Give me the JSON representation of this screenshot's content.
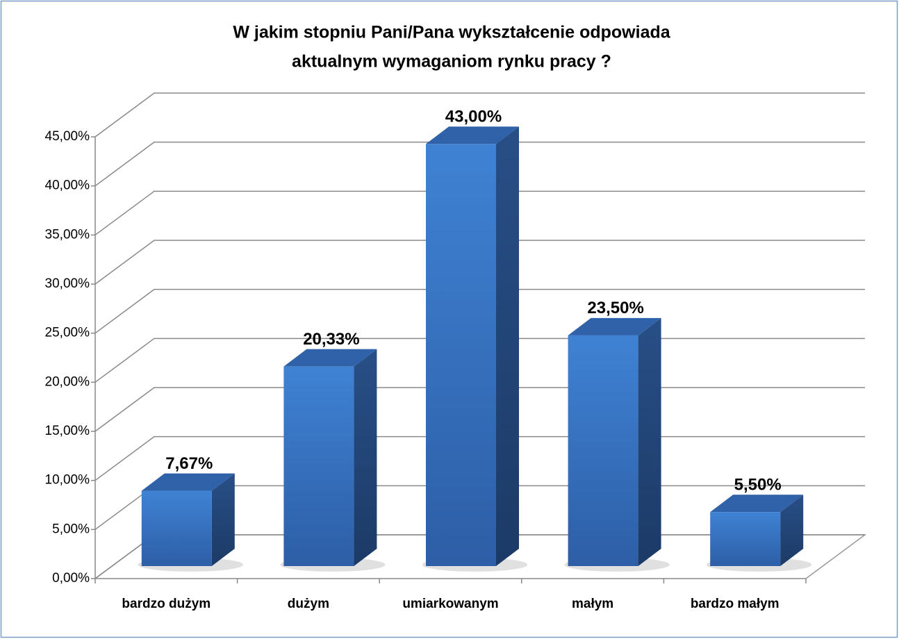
{
  "chart_data": {
    "type": "bar3d",
    "title": [
      "W jakim stopniu Pani/Pana wykształcenie odpowiada",
      "aktualnym wymaganiom rynku pracy ?"
    ],
    "categories": [
      "bardzo dużym",
      "dużym",
      "umiarkowanym",
      "małym",
      "bardzo małym"
    ],
    "values": [
      7.67,
      20.33,
      43,
      23.5,
      5.5
    ],
    "value_labels": [
      "7,67%",
      "20,33%",
      "43,00%",
      "23,50%",
      "5,50%"
    ],
    "color": "#3a78c8",
    "ylim": [
      0,
      45
    ],
    "yticks": [
      {
        "value": 0,
        "label": "0,00%"
      },
      {
        "value": 5,
        "label": "5,00%"
      },
      {
        "value": 10,
        "label": "10,00%"
      },
      {
        "value": 15,
        "label": "15,00%"
      },
      {
        "value": 20,
        "label": "20,00%"
      },
      {
        "value": 25,
        "label": "25,00%"
      },
      {
        "value": 30,
        "label": "30,00%"
      },
      {
        "value": 35,
        "label": "35,00%"
      },
      {
        "value": 40,
        "label": "40,00%"
      },
      {
        "value": 45,
        "label": "45,00%"
      }
    ],
    "grid": true
  }
}
